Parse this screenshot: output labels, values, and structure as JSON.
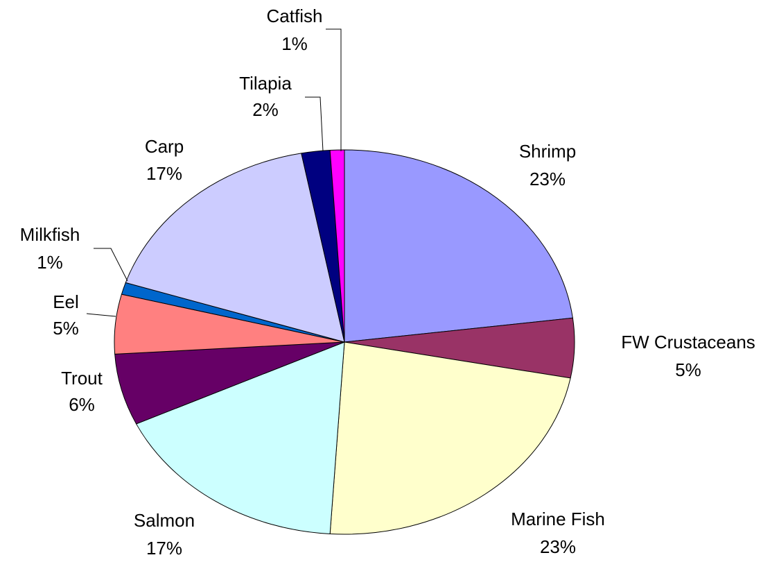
{
  "chart_data": {
    "type": "pie",
    "categories": [
      "Shrimp",
      "FW Crustaceans",
      "Marine Fish",
      "Salmon",
      "Trout",
      "Eel",
      "Milkfish",
      "Carp",
      "Tilapia",
      "Catfish"
    ],
    "values": [
      23,
      5,
      23,
      17,
      6,
      5,
      1,
      17,
      2,
      1
    ],
    "value_labels": [
      "23%",
      "5%",
      "23%",
      "17%",
      "6%",
      "5%",
      "1%",
      "17%",
      "2%",
      "1%"
    ],
    "colors": [
      "#9999ff",
      "#993366",
      "#ffffcc",
      "#ccffff",
      "#660066",
      "#ff8080",
      "#0066cc",
      "#ccccff",
      "#000080",
      "#ff00ff"
    ]
  }
}
